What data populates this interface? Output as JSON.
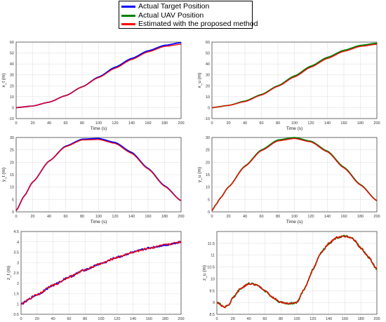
{
  "legend": {
    "entries": [
      {
        "label": "Actual Target Position",
        "color": "#0000ff"
      },
      {
        "label": "Actual UAV Position",
        "color": "#008000"
      },
      {
        "label": "Estimated with the proposed method",
        "color": "#ff0000"
      }
    ]
  },
  "chart_data": [
    {
      "type": "line",
      "ylabel": "x_t (m)",
      "xlabel": "Time (s)",
      "xlim": [
        0,
        200
      ],
      "ylim": [
        -10,
        60
      ],
      "xticks": [
        0,
        20,
        40,
        60,
        80,
        100,
        120,
        140,
        160,
        180,
        200
      ],
      "yticks": [
        -10,
        0,
        10,
        20,
        30,
        40,
        50,
        60
      ],
      "grid": true,
      "series": [
        {
          "name": "Actual Target Position",
          "color": "#0000ff",
          "x": [
            0,
            20,
            40,
            60,
            80,
            100,
            120,
            140,
            160,
            180,
            200
          ],
          "y": [
            0,
            1.5,
            5,
            11,
            19,
            28,
            37,
            45,
            52,
            57,
            59.5
          ]
        },
        {
          "name": "Estimated with the proposed method",
          "color": "#ff0000",
          "x": [
            0,
            20,
            40,
            60,
            80,
            100,
            120,
            140,
            160,
            180,
            200
          ],
          "y": [
            0,
            1.5,
            5,
            11,
            19,
            27.5,
            36,
            44,
            51,
            56,
            58
          ]
        }
      ]
    },
    {
      "type": "line",
      "ylabel": "x_u (m)",
      "xlabel": "Time (s)",
      "xlim": [
        0,
        200
      ],
      "ylim": [
        -10,
        60
      ],
      "xticks": [
        0,
        20,
        40,
        60,
        80,
        100,
        120,
        140,
        160,
        180,
        200
      ],
      "yticks": [
        -10,
        0,
        10,
        20,
        30,
        40,
        50,
        60
      ],
      "grid": true,
      "series": [
        {
          "name": "Actual UAV Position",
          "color": "#008000",
          "x": [
            0,
            20,
            40,
            60,
            80,
            100,
            120,
            140,
            160,
            180,
            200
          ],
          "y": [
            0,
            2,
            6,
            12,
            20,
            29,
            38,
            46,
            52.5,
            57,
            59
          ]
        },
        {
          "name": "Estimated with the proposed method",
          "color": "#ff0000",
          "x": [
            0,
            20,
            40,
            60,
            80,
            100,
            120,
            140,
            160,
            180,
            200
          ],
          "y": [
            0,
            2,
            5.5,
            11.5,
            19.5,
            28,
            37,
            45,
            51.5,
            56,
            58
          ]
        }
      ]
    },
    {
      "type": "line",
      "ylabel": "y_t (m)",
      "xlabel": "Time (s)",
      "xlim": [
        0,
        200
      ],
      "ylim": [
        0,
        30
      ],
      "xticks": [
        0,
        20,
        40,
        60,
        80,
        100,
        120,
        140,
        160,
        180,
        200
      ],
      "yticks": [
        0,
        5,
        10,
        15,
        20,
        25,
        30
      ],
      "grid": true,
      "series": [
        {
          "name": "Actual Target Position",
          "color": "#0000ff",
          "x": [
            0,
            10,
            20,
            40,
            60,
            80,
            100,
            120,
            140,
            160,
            180,
            200
          ],
          "y": [
            0.5,
            6.5,
            12,
            20.5,
            26.5,
            29.3,
            29.6,
            28,
            24,
            17.5,
            10.5,
            4.5
          ]
        },
        {
          "name": "Estimated with the proposed method",
          "color": "#ff0000",
          "x": [
            0,
            10,
            20,
            40,
            60,
            80,
            100,
            120,
            140,
            160,
            180,
            200
          ],
          "y": [
            0.5,
            6.5,
            12,
            20.5,
            26.3,
            29,
            29.2,
            27.6,
            23.6,
            17.3,
            10.3,
            4.5
          ]
        }
      ]
    },
    {
      "type": "line",
      "ylabel": "y_u (m)",
      "xlabel": "Time (s)",
      "xlim": [
        0,
        200
      ],
      "ylim": [
        0,
        30
      ],
      "xticks": [
        0,
        20,
        40,
        60,
        80,
        100,
        120,
        140,
        160,
        180,
        200
      ],
      "yticks": [
        0,
        5,
        10,
        15,
        20,
        25,
        30
      ],
      "grid": true,
      "series": [
        {
          "name": "Actual UAV Position",
          "color": "#008000",
          "x": [
            0,
            5,
            10,
            20,
            40,
            60,
            80,
            100,
            120,
            140,
            160,
            180,
            200
          ],
          "y": [
            0.5,
            3,
            5.5,
            10,
            18.5,
            25,
            29,
            30,
            28.5,
            24.5,
            18,
            11,
            4.5
          ]
        },
        {
          "name": "Estimated with the proposed method",
          "color": "#ff0000",
          "x": [
            0,
            5,
            10,
            20,
            40,
            60,
            80,
            100,
            120,
            140,
            160,
            180,
            200
          ],
          "y": [
            0.5,
            3,
            5.5,
            10,
            18.3,
            24.7,
            28.6,
            29.6,
            28.2,
            24.2,
            17.7,
            10.8,
            4.5
          ]
        }
      ]
    },
    {
      "type": "line",
      "ylabel": "z_t (m)",
      "xlabel": "Time (s)",
      "xlim": [
        0,
        200
      ],
      "ylim": [
        0.5,
        4.5
      ],
      "xticks": [
        0,
        20,
        40,
        60,
        80,
        100,
        120,
        140,
        160,
        180,
        200
      ],
      "yticks": [
        0.5,
        1,
        1.5,
        2,
        2.5,
        3,
        3.5,
        4,
        4.5
      ],
      "grid": true,
      "noisy": true,
      "series": [
        {
          "name": "Actual Target Position",
          "color": "#0000ff",
          "x": [
            0,
            20,
            40,
            60,
            80,
            100,
            120,
            140,
            160,
            180,
            200
          ],
          "y": [
            1,
            1.45,
            1.9,
            2.3,
            2.65,
            2.95,
            3.25,
            3.5,
            3.7,
            3.85,
            4
          ]
        },
        {
          "name": "Estimated with the proposed method",
          "color": "#ff0000",
          "x": [
            0,
            20,
            40,
            60,
            80,
            100,
            120,
            140,
            160,
            180,
            200
          ],
          "y": [
            1,
            1.45,
            1.9,
            2.3,
            2.65,
            2.95,
            3.25,
            3.5,
            3.7,
            3.85,
            4
          ]
        }
      ]
    },
    {
      "type": "line",
      "ylabel": "z_u (m)",
      "xlabel": "Time (s)",
      "xlim": [
        0,
        200
      ],
      "ylim": [
        8.5,
        12
      ],
      "xticks": [
        0,
        20,
        40,
        60,
        80,
        100,
        120,
        140,
        160,
        180,
        200
      ],
      "yticks": [
        8.5,
        9,
        9.5,
        10,
        10.5,
        11,
        11.5
      ],
      "grid": true,
      "noisy": true,
      "series": [
        {
          "name": "Actual UAV Position",
          "color": "#008000",
          "x": [
            0,
            10,
            15,
            20,
            30,
            40,
            50,
            60,
            70,
            80,
            90,
            100,
            110,
            120,
            130,
            140,
            150,
            160,
            170,
            180,
            190,
            200
          ],
          "y": [
            9,
            8.8,
            8.9,
            9.2,
            9.6,
            9.8,
            9.75,
            9.5,
            9.2,
            9.0,
            8.95,
            9.0,
            9.6,
            10.4,
            11.1,
            11.5,
            11.75,
            11.8,
            11.7,
            11.3,
            10.9,
            10.4
          ]
        },
        {
          "name": "Estimated with the proposed method",
          "color": "#ff0000",
          "x": [
            0,
            10,
            15,
            20,
            30,
            40,
            50,
            60,
            70,
            80,
            90,
            100,
            110,
            120,
            130,
            140,
            150,
            160,
            170,
            180,
            190,
            200
          ],
          "y": [
            9,
            8.8,
            8.9,
            9.2,
            9.6,
            9.8,
            9.75,
            9.5,
            9.2,
            9.0,
            8.95,
            9.0,
            9.6,
            10.4,
            11.1,
            11.5,
            11.75,
            11.8,
            11.7,
            11.3,
            10.9,
            10.4
          ]
        }
      ]
    }
  ]
}
